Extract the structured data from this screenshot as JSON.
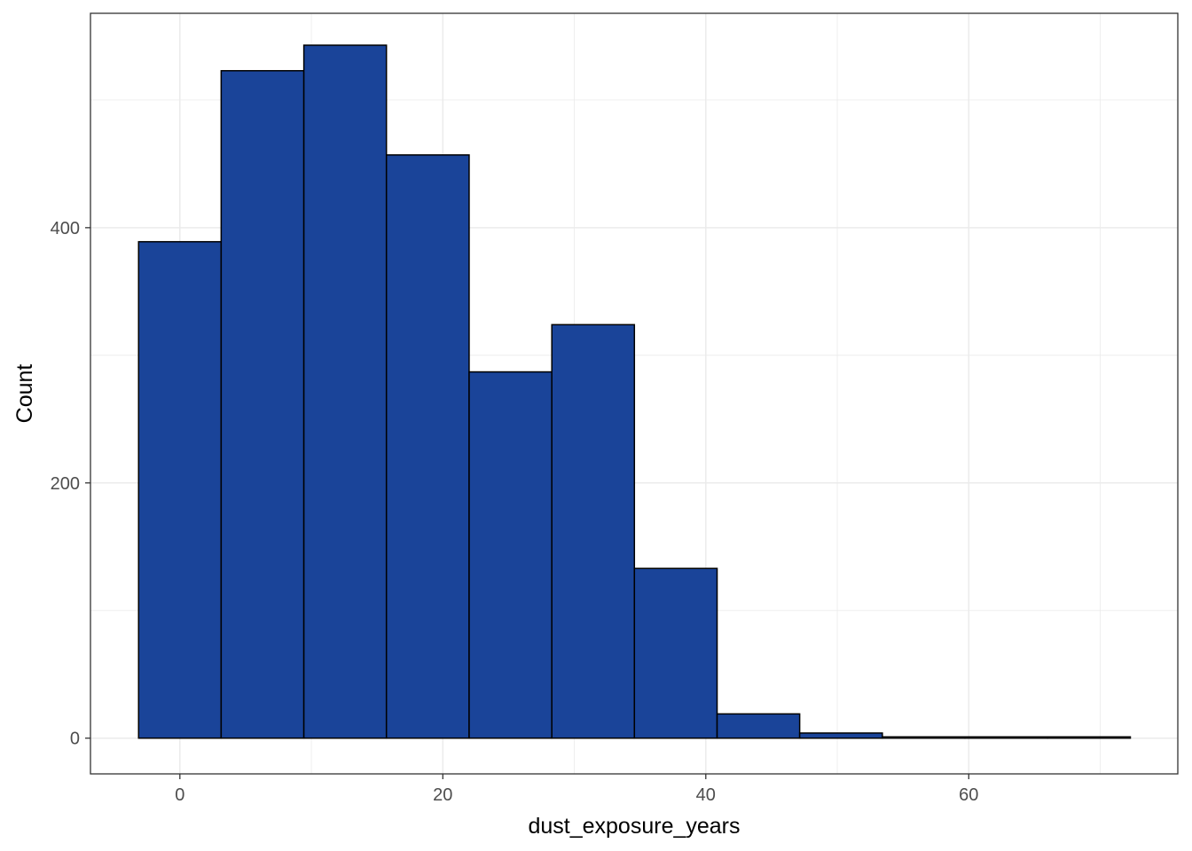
{
  "chart_data": {
    "type": "bar",
    "subtype": "histogram",
    "title": "",
    "xlabel": "dust_exposure_years",
    "ylabel": "Count",
    "xlim": [
      -6.8,
      75.9
    ],
    "ylim": [
      -28,
      568
    ],
    "x_ticks": [
      0,
      20,
      40,
      60
    ],
    "y_ticks": [
      0,
      200,
      400
    ],
    "grid": true,
    "legend": "none",
    "bar_fill": "#1A4499",
    "bar_outline": "#000000",
    "bins": [
      {
        "x0": -3.14,
        "x1": 3.14,
        "count": 389
      },
      {
        "x0": 3.14,
        "x1": 9.43,
        "count": 523
      },
      {
        "x0": 9.43,
        "x1": 15.71,
        "count": 543
      },
      {
        "x0": 15.71,
        "x1": 22.0,
        "count": 457
      },
      {
        "x0": 22.0,
        "x1": 28.29,
        "count": 287
      },
      {
        "x0": 28.29,
        "x1": 34.57,
        "count": 324
      },
      {
        "x0": 34.57,
        "x1": 40.86,
        "count": 133
      },
      {
        "x0": 40.86,
        "x1": 47.14,
        "count": 19
      },
      {
        "x0": 47.14,
        "x1": 53.43,
        "count": 4
      },
      {
        "x0": 53.43,
        "x1": 59.71,
        "count": 1
      },
      {
        "x0": 59.71,
        "x1": 66.0,
        "count": 1
      },
      {
        "x0": 66.0,
        "x1": 72.29,
        "count": 1
      }
    ]
  }
}
